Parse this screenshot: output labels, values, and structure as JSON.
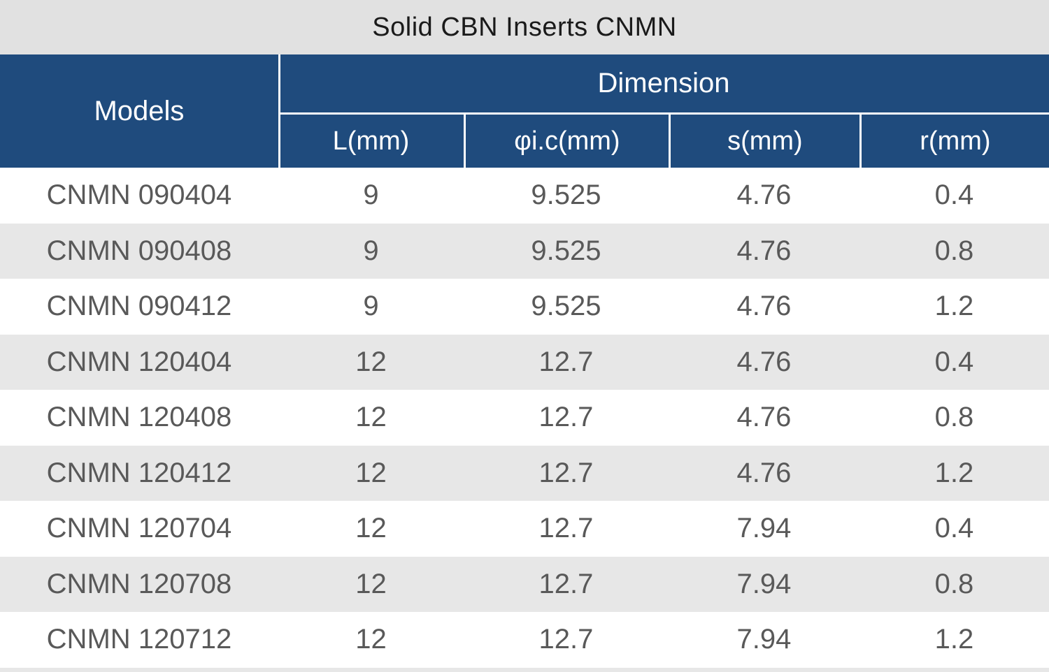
{
  "title": "Solid CBN Inserts CNMN",
  "colors": {
    "header_blue": "#1F4B7D",
    "title_bar_bg": "#E1E1E1",
    "stripe_gray": "#E7E7E7",
    "row_white": "#FFFFFF",
    "divider": "#FFFFFF",
    "header_text": "#FFFFFF",
    "title_text": "#1A1A1A",
    "body_text": "#595959"
  },
  "table": {
    "models_header": "Models",
    "dimension_header": "Dimension",
    "columns": [
      "L(mm)",
      "φi.c(mm)",
      "s(mm)",
      "r(mm)"
    ],
    "rows": [
      {
        "model": "CNMN 090404",
        "values": [
          "9",
          "9.525",
          "4.76",
          "0.4"
        ]
      },
      {
        "model": "CNMN 090408",
        "values": [
          "9",
          "9.525",
          "4.76",
          "0.8"
        ]
      },
      {
        "model": "CNMN 090412",
        "values": [
          "9",
          "9.525",
          "4.76",
          "1.2"
        ]
      },
      {
        "model": "CNMN 120404",
        "values": [
          "12",
          "12.7",
          "4.76",
          "0.4"
        ]
      },
      {
        "model": "CNMN 120408",
        "values": [
          "12",
          "12.7",
          "4.76",
          "0.8"
        ]
      },
      {
        "model": "CNMN 120412",
        "values": [
          "12",
          "12.7",
          "4.76",
          "1.2"
        ]
      },
      {
        "model": "CNMN 120704",
        "values": [
          "12",
          "12.7",
          "7.94",
          "0.4"
        ]
      },
      {
        "model": "CNMN 120708",
        "values": [
          "12",
          "12.7",
          "7.94",
          "0.8"
        ]
      },
      {
        "model": "CNMN 120712",
        "values": [
          "12",
          "12.7",
          "7.94",
          "1.2"
        ]
      }
    ]
  }
}
